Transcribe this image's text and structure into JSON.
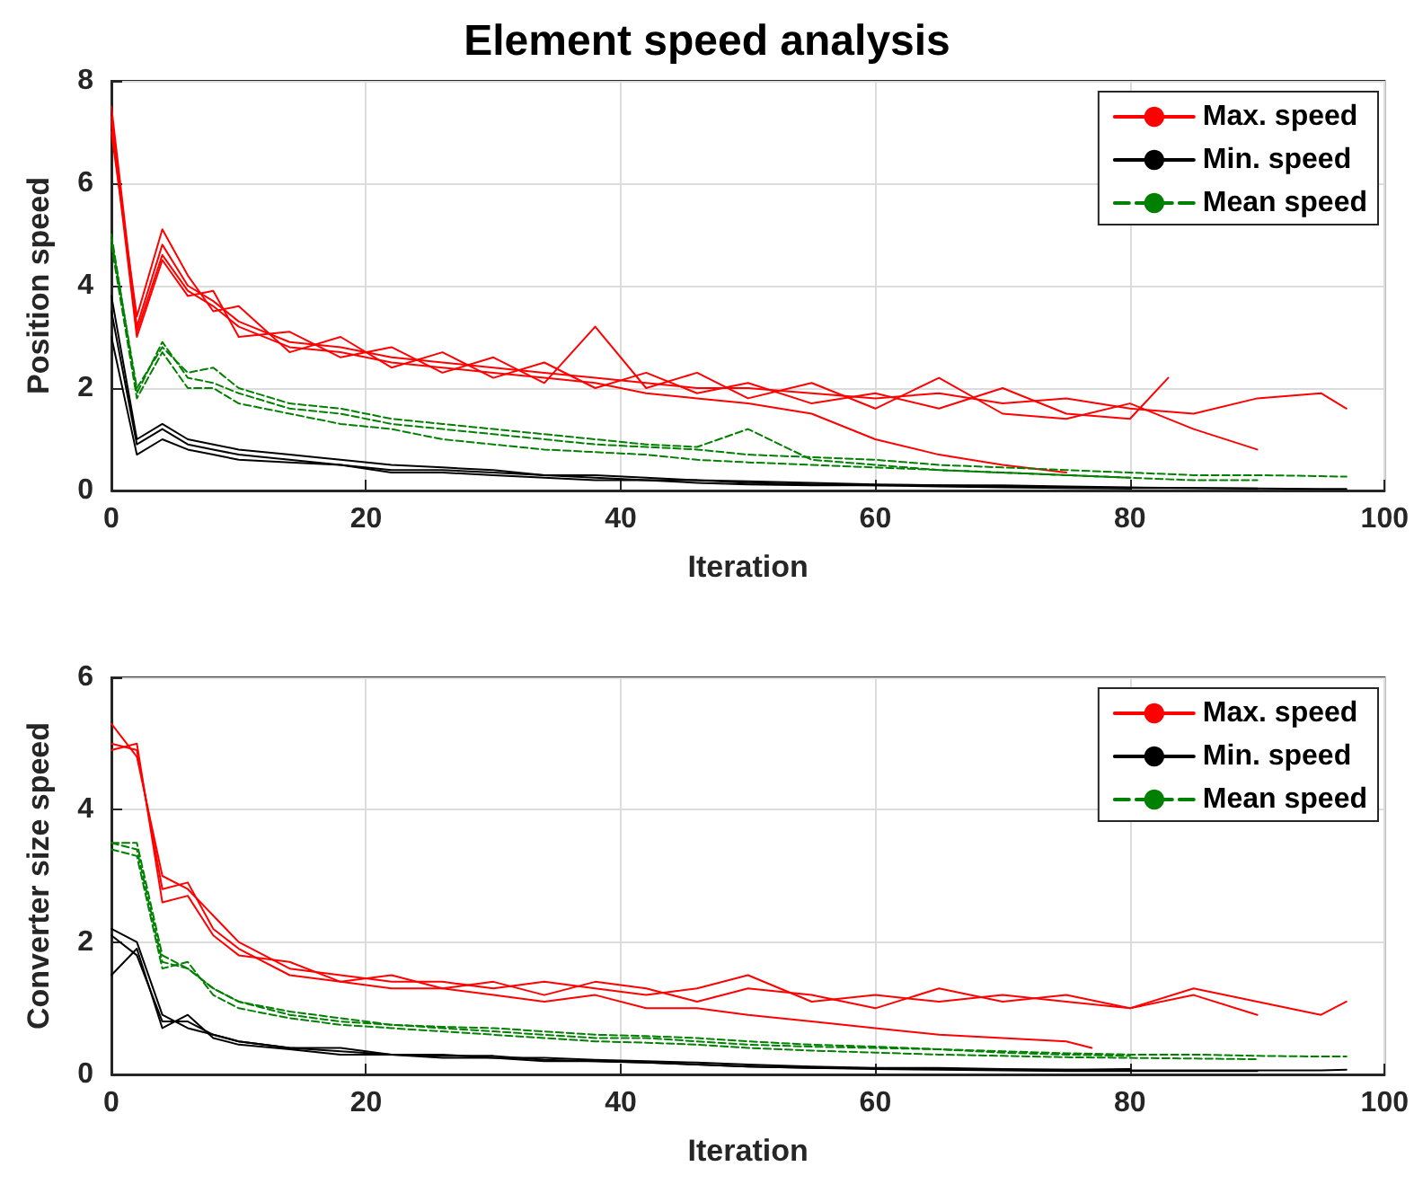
{
  "chart_data": [
    {
      "type": "line",
      "title": "Element speed analysis",
      "xlabel": "Iteration",
      "ylabel": "Position speed",
      "xlim": [
        0,
        100
      ],
      "xticks": [
        0,
        20,
        40,
        60,
        80,
        100
      ],
      "ylim": [
        0,
        8
      ],
      "yticks": [
        0,
        2,
        4,
        6,
        8
      ],
      "grid": true,
      "legend": "top right",
      "marker": "none",
      "series": [
        {
          "name": "Max. speed",
          "color": "#ff0000",
          "x": [
            0,
            2,
            4,
            6,
            8,
            10,
            14,
            18,
            22,
            26,
            30,
            34,
            38,
            42,
            46,
            50,
            55,
            60,
            65,
            70,
            75,
            80,
            85,
            90,
            95,
            97
          ],
          "values": [
            7.5,
            3.2,
            4.8,
            4.0,
            3.7,
            3.3,
            2.9,
            2.8,
            2.6,
            2.5,
            2.4,
            2.3,
            2.2,
            2.1,
            2.0,
            2.0,
            1.9,
            1.8,
            1.9,
            1.7,
            1.8,
            1.6,
            1.5,
            1.8,
            1.9,
            1.6
          ]
        },
        {
          "color": "#ff0000",
          "x": [
            0,
            2,
            4,
            6,
            8,
            10,
            14,
            18,
            22,
            26,
            30,
            34,
            38,
            42,
            46,
            50,
            55,
            60,
            65,
            70,
            75,
            80,
            85,
            90
          ],
          "values": [
            7.2,
            3.0,
            4.5,
            3.8,
            3.9,
            3.0,
            3.1,
            2.6,
            2.8,
            2.3,
            2.6,
            2.1,
            3.2,
            2.0,
            2.3,
            1.8,
            2.1,
            1.6,
            2.2,
            1.5,
            1.4,
            1.7,
            1.2,
            0.8
          ]
        },
        {
          "color": "#ff0000",
          "x": [
            0,
            2,
            4,
            6,
            8,
            10,
            14,
            18,
            22,
            26,
            30,
            34,
            38,
            42,
            46,
            50,
            55,
            60,
            65,
            70,
            75,
            80,
            83
          ],
          "values": [
            7.0,
            3.4,
            5.1,
            4.2,
            3.5,
            3.6,
            2.7,
            3.0,
            2.4,
            2.7,
            2.2,
            2.5,
            2.0,
            2.3,
            1.9,
            2.1,
            1.7,
            1.9,
            1.6,
            2.0,
            1.5,
            1.4,
            2.2
          ]
        },
        {
          "color": "#ff0000",
          "x": [
            0,
            2,
            4,
            6,
            8,
            10,
            14,
            18,
            22,
            26,
            30,
            34,
            38,
            42,
            46,
            50,
            55,
            60,
            65,
            70,
            75
          ],
          "values": [
            7.3,
            3.1,
            4.6,
            3.9,
            3.6,
            3.2,
            2.8,
            2.7,
            2.5,
            2.4,
            2.3,
            2.2,
            2.1,
            1.9,
            1.8,
            1.7,
            1.5,
            1.0,
            0.7,
            0.5,
            0.35
          ]
        },
        {
          "name": "Min. speed",
          "color": "#000000",
          "x": [
            0,
            2,
            4,
            6,
            8,
            10,
            14,
            18,
            22,
            26,
            30,
            34,
            38,
            42,
            46,
            50,
            55,
            60,
            65,
            70,
            75,
            80,
            85,
            90,
            95,
            97
          ],
          "values": [
            3.5,
            0.9,
            1.2,
            0.9,
            0.8,
            0.7,
            0.6,
            0.5,
            0.4,
            0.4,
            0.35,
            0.3,
            0.25,
            0.2,
            0.2,
            0.15,
            0.12,
            0.1,
            0.1,
            0.08,
            0.06,
            0.05,
            0.05,
            0.04,
            0.03,
            0.03
          ]
        },
        {
          "color": "#000000",
          "x": [
            0,
            2,
            4,
            6,
            8,
            10,
            14,
            18,
            22,
            26,
            30,
            34,
            38,
            42,
            46,
            50,
            55,
            60,
            65,
            70,
            75,
            80
          ],
          "values": [
            3.0,
            0.7,
            1.0,
            0.8,
            0.7,
            0.6,
            0.55,
            0.5,
            0.35,
            0.35,
            0.3,
            0.25,
            0.2,
            0.2,
            0.15,
            0.12,
            0.1,
            0.1,
            0.08,
            0.06,
            0.05,
            0.04
          ]
        },
        {
          "color": "#000000",
          "x": [
            0,
            2,
            4,
            6,
            8,
            10,
            14,
            18,
            22,
            26,
            30,
            34,
            38,
            42,
            46,
            50,
            55,
            60,
            65,
            70,
            75,
            80,
            85,
            90
          ],
          "values": [
            3.8,
            1.0,
            1.3,
            1.0,
            0.9,
            0.8,
            0.7,
            0.6,
            0.5,
            0.45,
            0.4,
            0.3,
            0.3,
            0.25,
            0.2,
            0.18,
            0.15,
            0.12,
            0.1,
            0.1,
            0.08,
            0.06,
            0.05,
            0.04
          ]
        },
        {
          "name": "Mean speed",
          "color": "#008000",
          "line_style": "dashed",
          "x": [
            0,
            2,
            4,
            6,
            8,
            10,
            14,
            18,
            22,
            26,
            30,
            34,
            38,
            42,
            46,
            50,
            55,
            60,
            65,
            70,
            75,
            80,
            85,
            90,
            95,
            97
          ],
          "values": [
            5.0,
            1.9,
            2.9,
            2.2,
            2.1,
            1.9,
            1.6,
            1.5,
            1.3,
            1.2,
            1.1,
            1.0,
            0.9,
            0.85,
            0.8,
            0.7,
            0.65,
            0.6,
            0.5,
            0.45,
            0.4,
            0.35,
            0.3,
            0.3,
            0.28,
            0.27
          ]
        },
        {
          "color": "#008000",
          "line_style": "dashed",
          "x": [
            0,
            2,
            4,
            6,
            8,
            10,
            14,
            18,
            22,
            26,
            30,
            34,
            38,
            42,
            46,
            50,
            55,
            60,
            65,
            70,
            75,
            80,
            85,
            90
          ],
          "values": [
            4.8,
            1.8,
            2.7,
            2.0,
            2.0,
            1.7,
            1.5,
            1.3,
            1.2,
            1.0,
            0.9,
            0.8,
            0.75,
            0.7,
            0.6,
            0.55,
            0.5,
            0.45,
            0.4,
            0.35,
            0.3,
            0.25,
            0.2,
            0.2
          ]
        },
        {
          "color": "#008000",
          "line_style": "dashed",
          "x": [
            0,
            2,
            4,
            6,
            8,
            10,
            14,
            18,
            22,
            26,
            30,
            34,
            38,
            42,
            46,
            50,
            55,
            60,
            65,
            70,
            75,
            80
          ],
          "values": [
            4.9,
            2.0,
            2.8,
            2.3,
            2.4,
            2.0,
            1.7,
            1.6,
            1.4,
            1.3,
            1.2,
            1.1,
            1.0,
            0.9,
            0.85,
            1.2,
            0.6,
            0.5,
            0.4,
            0.35,
            0.3,
            0.25
          ]
        }
      ]
    },
    {
      "type": "line",
      "xlabel": "Iteration",
      "ylabel": "Converter size speed",
      "xlim": [
        0,
        100
      ],
      "xticks": [
        0,
        20,
        40,
        60,
        80,
        100
      ],
      "ylim": [
        0,
        6
      ],
      "yticks": [
        0,
        2,
        4,
        6
      ],
      "grid": true,
      "legend": "top right",
      "marker": "none",
      "series": [
        {
          "name": "Max. speed",
          "color": "#ff0000",
          "x": [
            0,
            2,
            4,
            6,
            8,
            10,
            14,
            18,
            22,
            26,
            30,
            34,
            38,
            42,
            46,
            50,
            55,
            60,
            65,
            70,
            75,
            80,
            85,
            90,
            95,
            97
          ],
          "values": [
            5.3,
            4.8,
            3.0,
            2.8,
            2.4,
            2.0,
            1.6,
            1.5,
            1.4,
            1.4,
            1.3,
            1.4,
            1.3,
            1.2,
            1.3,
            1.5,
            1.1,
            1.2,
            1.1,
            1.2,
            1.1,
            1.0,
            1.3,
            1.1,
            0.9,
            1.1
          ]
        },
        {
          "color": "#ff0000",
          "x": [
            0,
            2,
            4,
            6,
            8,
            10,
            14,
            18,
            22,
            26,
            30,
            34,
            38,
            42,
            46,
            50,
            55,
            60,
            65,
            70,
            75,
            80,
            85,
            90
          ],
          "values": [
            4.9,
            5.0,
            2.6,
            2.7,
            2.1,
            1.8,
            1.7,
            1.4,
            1.5,
            1.3,
            1.4,
            1.2,
            1.4,
            1.3,
            1.1,
            1.3,
            1.2,
            1.0,
            1.3,
            1.1,
            1.2,
            1.0,
            1.2,
            0.9
          ]
        },
        {
          "color": "#ff0000",
          "x": [
            0,
            2,
            4,
            6,
            8,
            10,
            14,
            18,
            22,
            26,
            30,
            34,
            38,
            42,
            46,
            50,
            55,
            60,
            65,
            70,
            75,
            77
          ],
          "values": [
            5.0,
            4.9,
            2.8,
            2.9,
            2.2,
            1.9,
            1.5,
            1.4,
            1.3,
            1.3,
            1.2,
            1.1,
            1.2,
            1.0,
            1.0,
            0.9,
            0.8,
            0.7,
            0.6,
            0.55,
            0.5,
            0.4
          ]
        },
        {
          "name": "Min. speed",
          "color": "#000000",
          "x": [
            0,
            2,
            4,
            6,
            8,
            10,
            14,
            18,
            22,
            26,
            30,
            34,
            38,
            42,
            46,
            50,
            55,
            60,
            65,
            70,
            75,
            80,
            85,
            90,
            95,
            97
          ],
          "values": [
            2.1,
            1.8,
            0.8,
            0.8,
            0.6,
            0.5,
            0.4,
            0.35,
            0.3,
            0.3,
            0.25,
            0.25,
            0.22,
            0.2,
            0.18,
            0.15,
            0.12,
            0.1,
            0.1,
            0.08,
            0.07,
            0.06,
            0.06,
            0.06,
            0.06,
            0.07
          ]
        },
        {
          "color": "#000000",
          "x": [
            0,
            2,
            4,
            6,
            8,
            10,
            14,
            18,
            22,
            26,
            30,
            34,
            38,
            42,
            46,
            50,
            55,
            60,
            65,
            70,
            75,
            80,
            85,
            90
          ],
          "values": [
            1.5,
            1.9,
            0.7,
            0.9,
            0.55,
            0.45,
            0.38,
            0.3,
            0.3,
            0.25,
            0.25,
            0.2,
            0.2,
            0.18,
            0.15,
            0.12,
            0.1,
            0.08,
            0.07,
            0.06,
            0.05,
            0.05,
            0.05,
            0.05
          ]
        },
        {
          "color": "#000000",
          "x": [
            0,
            2,
            4,
            6,
            8,
            10,
            14,
            18,
            22,
            26,
            30,
            34,
            38,
            42,
            46,
            50,
            55,
            60,
            65,
            70,
            75,
            80
          ],
          "values": [
            2.2,
            2.0,
            0.9,
            0.7,
            0.6,
            0.5,
            0.4,
            0.4,
            0.3,
            0.28,
            0.28,
            0.22,
            0.2,
            0.18,
            0.15,
            0.12,
            0.1,
            0.09,
            0.08,
            0.07,
            0.07,
            0.08
          ]
        },
        {
          "name": "Mean speed",
          "color": "#008000",
          "line_style": "dashed",
          "x": [
            0,
            2,
            4,
            6,
            8,
            10,
            14,
            18,
            22,
            26,
            30,
            34,
            38,
            42,
            46,
            50,
            55,
            60,
            65,
            70,
            75,
            80,
            85,
            90,
            95,
            97
          ],
          "values": [
            3.5,
            3.4,
            1.7,
            1.6,
            1.3,
            1.1,
            0.9,
            0.8,
            0.75,
            0.7,
            0.65,
            0.6,
            0.55,
            0.55,
            0.5,
            0.45,
            0.42,
            0.4,
            0.38,
            0.35,
            0.32,
            0.3,
            0.3,
            0.28,
            0.27,
            0.27
          ]
        },
        {
          "color": "#008000",
          "line_style": "dashed",
          "x": [
            0,
            2,
            4,
            6,
            8,
            10,
            14,
            18,
            22,
            26,
            30,
            34,
            38,
            42,
            46,
            50,
            55,
            60,
            65,
            70,
            75,
            80,
            85,
            90
          ],
          "values": [
            3.4,
            3.3,
            1.6,
            1.7,
            1.2,
            1.0,
            0.85,
            0.75,
            0.7,
            0.65,
            0.6,
            0.55,
            0.5,
            0.48,
            0.45,
            0.4,
            0.36,
            0.33,
            0.3,
            0.28,
            0.26,
            0.25,
            0.24,
            0.23
          ]
        },
        {
          "color": "#008000",
          "line_style": "dashed",
          "x": [
            0,
            2,
            4,
            6,
            8,
            10,
            14,
            18,
            22,
            26,
            30,
            34,
            38,
            42,
            46,
            50,
            55,
            60,
            65,
            70,
            75,
            80
          ],
          "values": [
            3.5,
            3.5,
            1.8,
            1.6,
            1.3,
            1.1,
            0.95,
            0.85,
            0.75,
            0.72,
            0.7,
            0.65,
            0.6,
            0.58,
            0.55,
            0.5,
            0.45,
            0.42,
            0.38,
            0.33,
            0.3,
            0.28
          ]
        }
      ]
    }
  ]
}
